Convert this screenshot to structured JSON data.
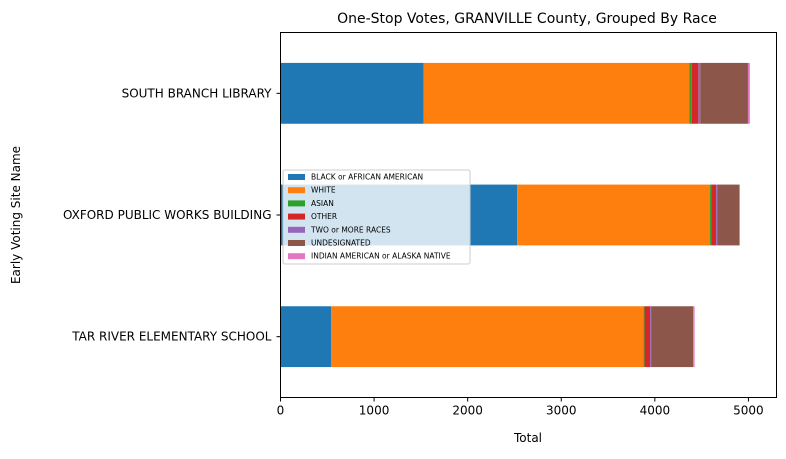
{
  "chart_data": {
    "type": "bar",
    "orientation": "horizontal",
    "stacked": true,
    "title": "One-Stop Votes, GRANVILLE County, Grouped By Race",
    "xlabel": "Total",
    "ylabel": "Early Voting Site Name",
    "xlim": [
      0,
      5300
    ],
    "xticks": [
      "0",
      "1000",
      "2000",
      "3000",
      "4000",
      "5000"
    ],
    "grid": false,
    "legend_position": "center-left",
    "categories": [
      "TAR RIVER ELEMENTARY SCHOOL",
      "OXFORD PUBLIC WORKS BUILDING",
      "SOUTH BRANCH LIBRARY"
    ],
    "series": [
      {
        "name": "BLACK or AFRICAN AMERICAN",
        "color": "#1f77b4",
        "values": [
          540,
          2530,
          1530
        ]
      },
      {
        "name": "WHITE",
        "color": "#ff7f0e",
        "values": [
          3340,
          2060,
          2840
        ]
      },
      {
        "name": "ASIAN",
        "color": "#2ca02c",
        "values": [
          10,
          15,
          25
        ]
      },
      {
        "name": "OTHER",
        "color": "#d62728",
        "values": [
          60,
          50,
          70
        ]
      },
      {
        "name": "TWO or MORE RACES",
        "color": "#9467bd",
        "values": [
          10,
          15,
          20
        ]
      },
      {
        "name": "UNDESIGNATED",
        "color": "#8c564b",
        "values": [
          450,
          230,
          510
        ]
      },
      {
        "name": "INDIAN AMERICAN or ALASKA NATIVE",
        "color": "#e377c2",
        "values": [
          15,
          10,
          20
        ]
      }
    ]
  }
}
